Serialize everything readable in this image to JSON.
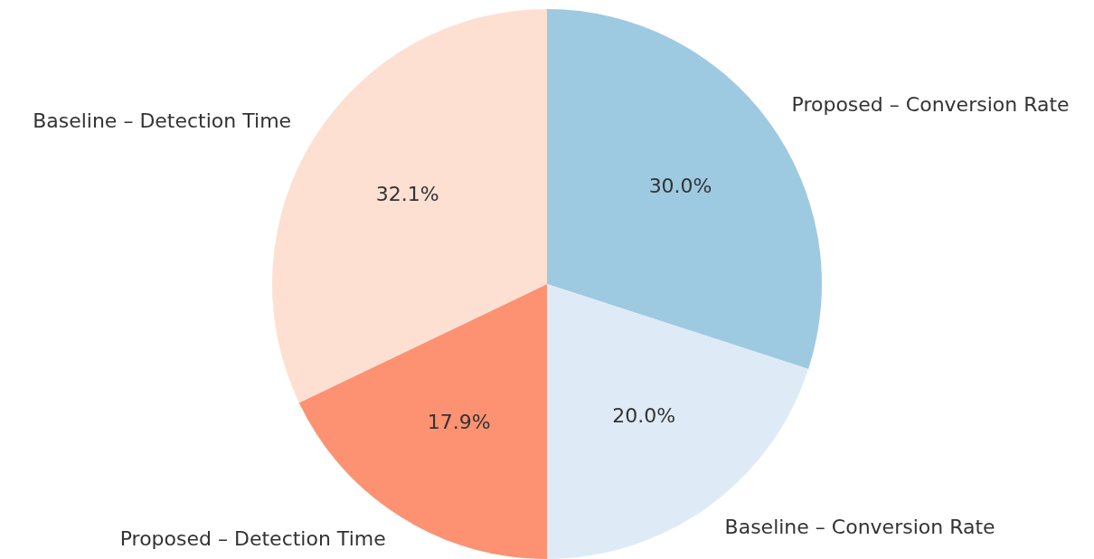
{
  "chart_data": {
    "type": "pie",
    "categories": [
      "Proposed – Conversion Rate",
      "Baseline – Conversion Rate",
      "Proposed – Detection Time",
      "Baseline – Detection Time"
    ],
    "values": [
      30.0,
      20.0,
      17.9,
      32.1
    ],
    "colors": [
      "#9ecae1",
      "#deebf7",
      "#fc9272",
      "#fde0d2"
    ],
    "value_labels": [
      "30.0%",
      "20.0%",
      "17.9%",
      "32.1%"
    ]
  }
}
